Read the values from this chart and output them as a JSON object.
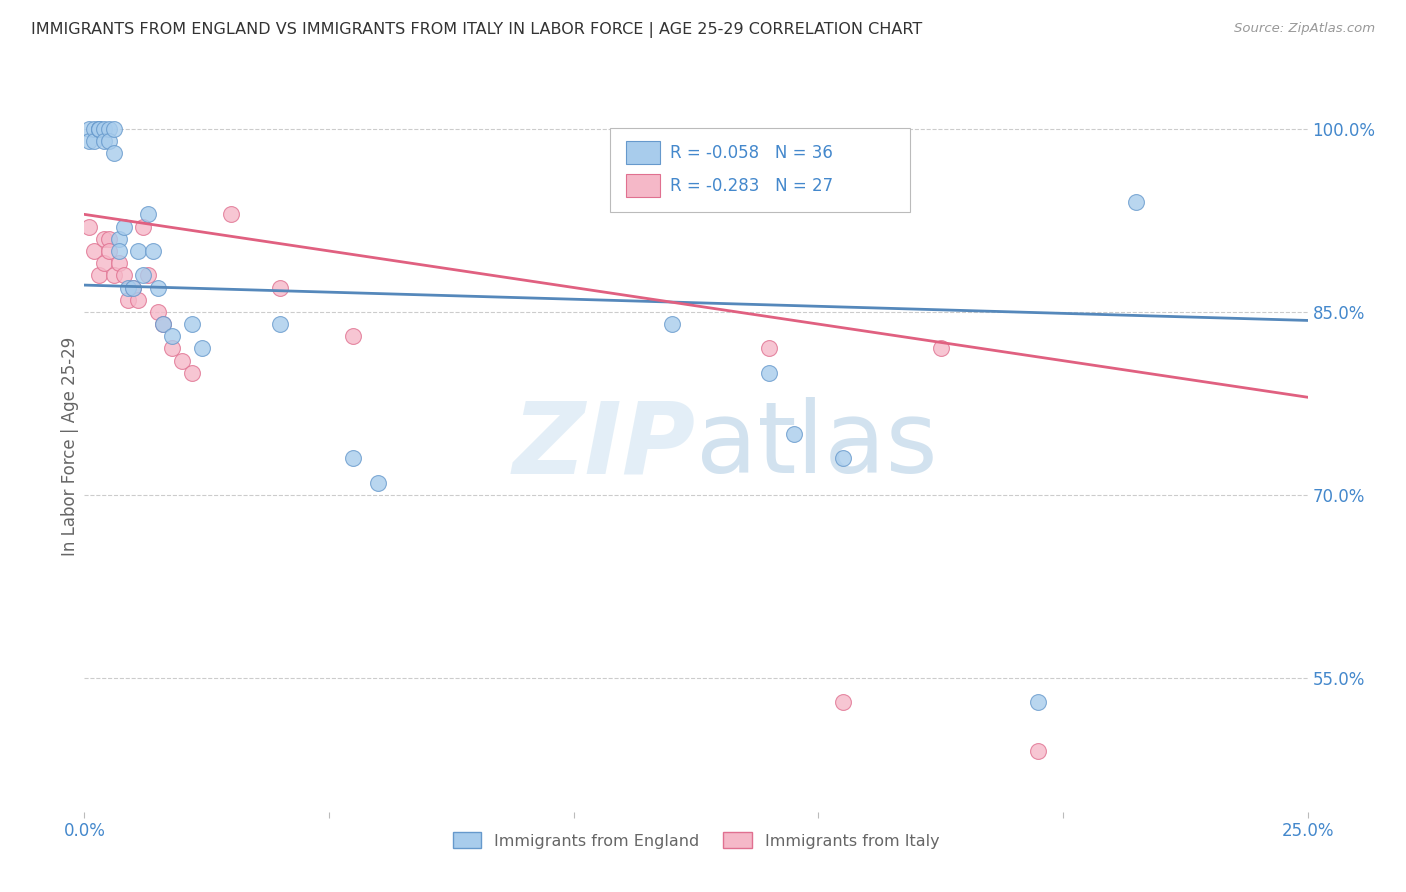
{
  "title": "IMMIGRANTS FROM ENGLAND VS IMMIGRANTS FROM ITALY IN LABOR FORCE | AGE 25-29 CORRELATION CHART",
  "source": "Source: ZipAtlas.com",
  "ylabel": "In Labor Force | Age 25-29",
  "xlim": [
    0.0,
    0.25
  ],
  "ylim": [
    0.44,
    1.04
  ],
  "xticks": [
    0.0,
    0.05,
    0.1,
    0.15,
    0.2,
    0.25
  ],
  "yticks_right": [
    0.55,
    0.7,
    0.85,
    1.0
  ],
  "ytick_labels_right": [
    "55.0%",
    "70.0%",
    "85.0%",
    "100.0%"
  ],
  "england_color": "#a8ccec",
  "italy_color": "#f5b8c8",
  "england_edge": "#6699cc",
  "italy_edge": "#e07090",
  "R_england": -0.058,
  "N_england": 36,
  "R_italy": -0.283,
  "N_italy": 27,
  "line_color_england": "#5588bb",
  "line_color_italy": "#e06080",
  "watermark_zip": "ZIP",
  "watermark_atlas": "atlas",
  "bg_color": "#ffffff",
  "grid_color": "#cccccc",
  "title_color": "#333333",
  "axis_label_color": "#666666",
  "right_tick_color": "#4488cc",
  "marker_size": 130,
  "england_line_x": [
    0.0,
    0.25
  ],
  "england_line_y": [
    0.872,
    0.843
  ],
  "italy_line_x": [
    0.0,
    0.25
  ],
  "italy_line_y": [
    0.93,
    0.78
  ],
  "england_x": [
    0.001,
    0.001,
    0.002,
    0.002,
    0.003,
    0.003,
    0.003,
    0.004,
    0.004,
    0.005,
    0.005,
    0.006,
    0.006,
    0.007,
    0.007,
    0.008,
    0.009,
    0.01,
    0.011,
    0.012,
    0.013,
    0.014,
    0.015,
    0.016,
    0.018,
    0.022,
    0.024,
    0.04,
    0.055,
    0.06,
    0.12,
    0.14,
    0.145,
    0.155,
    0.195,
    0.215
  ],
  "england_y": [
    1.0,
    0.99,
    1.0,
    0.99,
    1.0,
    1.0,
    1.0,
    1.0,
    0.99,
    1.0,
    0.99,
    1.0,
    0.98,
    0.91,
    0.9,
    0.92,
    0.87,
    0.87,
    0.9,
    0.88,
    0.93,
    0.9,
    0.87,
    0.84,
    0.83,
    0.84,
    0.82,
    0.84,
    0.73,
    0.71,
    0.84,
    0.8,
    0.75,
    0.73,
    0.53,
    0.94
  ],
  "italy_x": [
    0.001,
    0.002,
    0.003,
    0.004,
    0.004,
    0.005,
    0.005,
    0.006,
    0.007,
    0.008,
    0.009,
    0.01,
    0.011,
    0.012,
    0.013,
    0.015,
    0.016,
    0.018,
    0.02,
    0.022,
    0.03,
    0.04,
    0.055,
    0.14,
    0.155,
    0.175,
    0.195
  ],
  "italy_y": [
    0.92,
    0.9,
    0.88,
    0.91,
    0.89,
    0.91,
    0.9,
    0.88,
    0.89,
    0.88,
    0.86,
    0.87,
    0.86,
    0.92,
    0.88,
    0.85,
    0.84,
    0.82,
    0.81,
    0.8,
    0.93,
    0.87,
    0.83,
    0.82,
    0.53,
    0.82,
    0.49
  ]
}
